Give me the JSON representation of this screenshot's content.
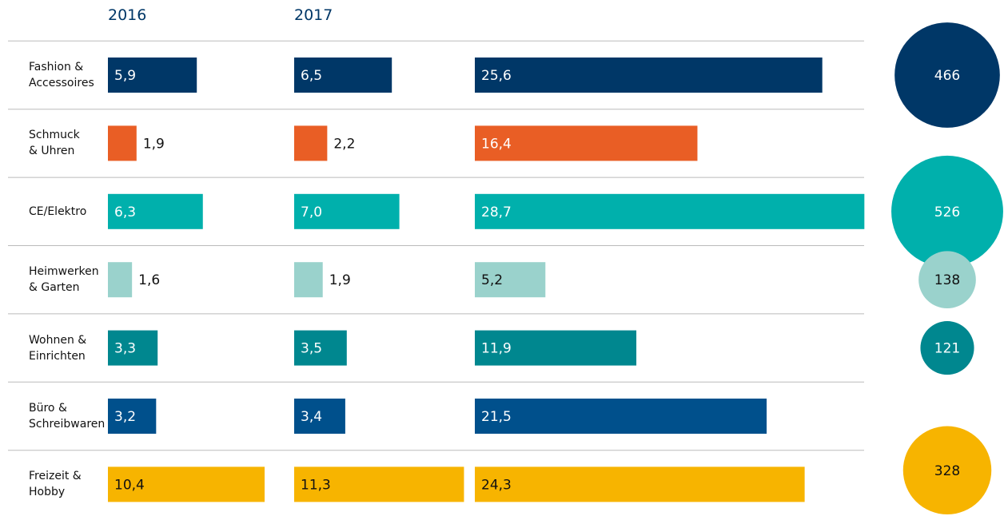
{
  "chart_data": {
    "type": "bar",
    "categories": [
      "Fashion &\nAccessoires",
      "Schmuck\n& Uhren",
      "CE/Elektro",
      "Heimwerken\n& Garten",
      "Wohnen &\nEinrichten",
      "Büro &\nSchreibwaren",
      "Freizeit &\nHobby"
    ],
    "colors": [
      "#003767",
      "#e95e25",
      "#00b0ac",
      "#9ad2cc",
      "#00878f",
      "#00508c",
      "#f7b400"
    ],
    "series": [
      {
        "name": "2016",
        "values": [
          5.9,
          1.9,
          6.3,
          1.6,
          3.3,
          3.2,
          10.4
        ],
        "value_labels": [
          "5,9",
          "1,9",
          "6,3",
          "1,6",
          "3,3",
          "3,2",
          "10,4"
        ]
      },
      {
        "name": "2017",
        "values": [
          6.5,
          2.2,
          7.0,
          1.9,
          3.5,
          3.4,
          11.3
        ],
        "value_labels": [
          "6,5",
          "2,2",
          "7,0",
          "1,9",
          "3,5",
          "3,4",
          "11,3"
        ]
      },
      {
        "values": [
          25.6,
          16.4,
          28.7,
          5.2,
          11.9,
          21.5,
          24.3
        ],
        "value_labels": [
          "25,6",
          "16,4",
          "28,7",
          "5,2",
          "11,9",
          "21,5",
          "24,3"
        ]
      }
    ],
    "bubbles": [
      466,
      null,
      526,
      138,
      121,
      null,
      328
    ]
  }
}
